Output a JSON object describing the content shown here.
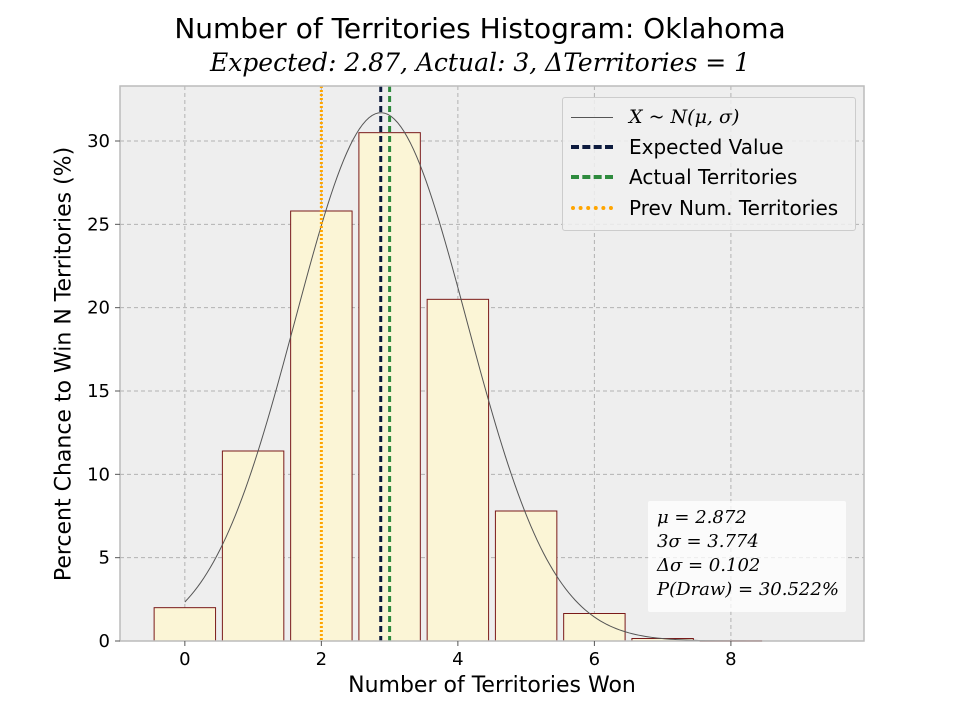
{
  "header": {
    "title": "Number of Territories Histogram: Oklahoma",
    "subtitle": "Expected: 2.87, Actual: 3, ΔTerritories = 1"
  },
  "legend": {
    "items": [
      {
        "label": "X ~ N(μ, σ)",
        "style": "solid-thin",
        "color": "#555555"
      },
      {
        "label": "Expected Value",
        "style": "dashed",
        "color": "#0d1b3e"
      },
      {
        "label": "Actual Territories",
        "style": "dashed",
        "color": "#2e8b3e"
      },
      {
        "label": "Prev Num. Territories",
        "style": "dotted",
        "color": "#ffa500"
      }
    ]
  },
  "stats": {
    "lines": [
      "μ = 2.872",
      "3σ = 3.774",
      "Δσ = 0.102",
      "P(Draw) = 30.522%"
    ]
  },
  "chart_data": {
    "type": "bar",
    "title": "Number of Territories Histogram: Oklahoma",
    "subtitle": "Expected: 2.87, Actual: 3, ΔTerritories = 1",
    "xlabel": "Number of Territories Won",
    "ylabel": "Percent Chance to Win N Territories (%)",
    "categories": [
      0,
      1,
      2,
      3,
      4,
      5,
      6,
      7,
      8
    ],
    "values": [
      2.0,
      11.4,
      25.8,
      30.5,
      20.5,
      7.8,
      1.65,
      0.15,
      0.02
    ],
    "xlim": [
      -0.95,
      9.95
    ],
    "ylim": [
      0,
      33.3
    ],
    "xticks": [
      0,
      2,
      4,
      6,
      8
    ],
    "yticks": [
      0,
      5,
      10,
      15,
      20,
      25,
      30
    ],
    "grid": true,
    "legend_position": "top-right",
    "bar_fill": "#fbf5d6",
    "bar_edge": "#7a1a1a",
    "background": "#eeeeee",
    "normal_curve": {
      "mu": 2.872,
      "sigma": 1.258,
      "peak": 31.7,
      "x_start": 0,
      "x_end": 9.3
    },
    "vlines": [
      {
        "name": "Prev Num. Territories",
        "x": 2,
        "color": "#ffa500",
        "style": "dotted"
      },
      {
        "name": "Expected Value",
        "x": 2.87,
        "color": "#0d1b3e",
        "style": "dashed"
      },
      {
        "name": "Actual Territories",
        "x": 3,
        "color": "#2e8b3e",
        "style": "dashed"
      }
    ]
  }
}
